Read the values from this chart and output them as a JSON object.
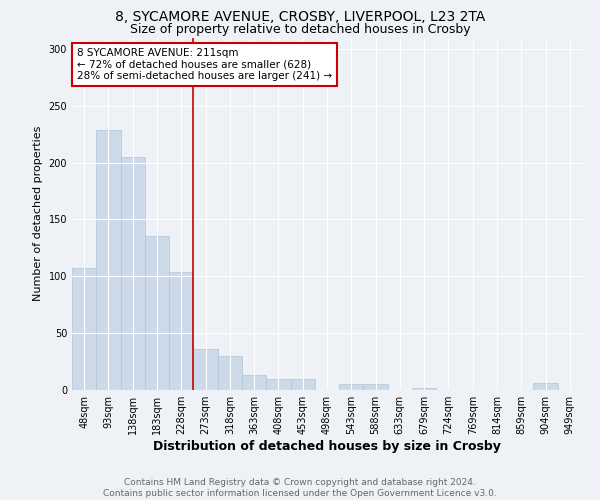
{
  "title1": "8, SYCAMORE AVENUE, CROSBY, LIVERPOOL, L23 2TA",
  "title2": "Size of property relative to detached houses in Crosby",
  "xlabel": "Distribution of detached houses by size in Crosby",
  "ylabel": "Number of detached properties",
  "bar_labels": [
    "48sqm",
    "93sqm",
    "138sqm",
    "183sqm",
    "228sqm",
    "273sqm",
    "318sqm",
    "363sqm",
    "408sqm",
    "453sqm",
    "498sqm",
    "543sqm",
    "588sqm",
    "633sqm",
    "679sqm",
    "724sqm",
    "769sqm",
    "814sqm",
    "859sqm",
    "904sqm",
    "949sqm"
  ],
  "bar_values": [
    107,
    229,
    205,
    135,
    104,
    36,
    30,
    13,
    10,
    10,
    0,
    5,
    5,
    0,
    2,
    0,
    0,
    0,
    0,
    6,
    0
  ],
  "bar_color": "#ccd9e8",
  "bar_edge_color": "#b0c4d8",
  "background_color": "#eef2f7",
  "grid_color": "#ffffff",
  "vline_x": 4.5,
  "vline_color": "#cc0000",
  "annotation_text": "8 SYCAMORE AVENUE: 211sqm\n← 72% of detached houses are smaller (628)\n28% of semi-detached houses are larger (241) →",
  "annotation_box_color": "#ffffff",
  "annotation_box_edge": "#cc0000",
  "ylim": [
    0,
    310
  ],
  "yticks": [
    0,
    50,
    100,
    150,
    200,
    250,
    300
  ],
  "footer": "Contains HM Land Registry data © Crown copyright and database right 2024.\nContains public sector information licensed under the Open Government Licence v3.0.",
  "title1_fontsize": 10,
  "title2_fontsize": 9,
  "xlabel_fontsize": 9,
  "ylabel_fontsize": 8,
  "tick_fontsize": 7,
  "footer_fontsize": 6.5
}
